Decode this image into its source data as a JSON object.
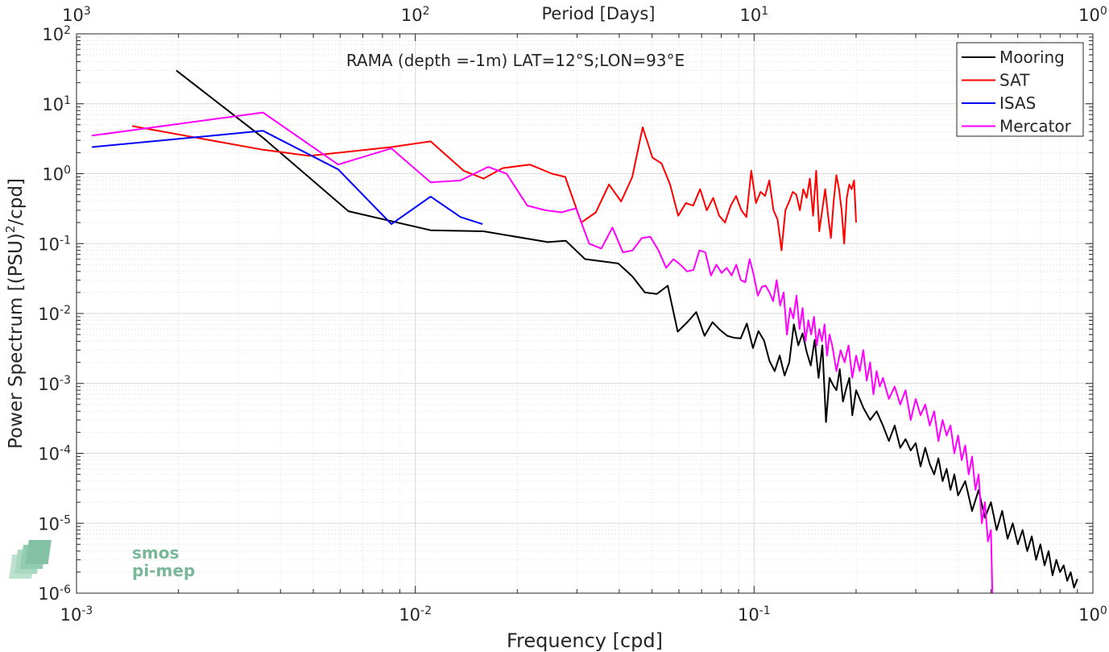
{
  "chart_data": {
    "type": "line",
    "title": "RAMA (depth =-1m) LAT=12°S;LON=93°E",
    "xlabel": "Frequency [cpd]",
    "ylabel": "Power Spectrum [(PSU)",
    "ylabel_sup": "2",
    "ylabel_tail": "/cpd]",
    "top_xlabel": "Period [Days]",
    "xscale": "log",
    "yscale": "log",
    "xlim": [
      0.001,
      1
    ],
    "ylim": [
      1e-06,
      100
    ],
    "grid": true,
    "legend_position": "top-right",
    "x_ticks": [
      {
        "base": "10",
        "exp": "-3"
      },
      {
        "base": "10",
        "exp": "-2"
      },
      {
        "base": "10",
        "exp": "-1"
      },
      {
        "base": "10",
        "exp": "0"
      }
    ],
    "y_ticks": [
      {
        "base": "10",
        "exp": "-6"
      },
      {
        "base": "10",
        "exp": "-5"
      },
      {
        "base": "10",
        "exp": "-4"
      },
      {
        "base": "10",
        "exp": "-3"
      },
      {
        "base": "10",
        "exp": "-2"
      },
      {
        "base": "10",
        "exp": "-1"
      },
      {
        "base": "10",
        "exp": "0"
      },
      {
        "base": "10",
        "exp": "1"
      },
      {
        "base": "10",
        "exp": "2"
      }
    ],
    "top_ticks": [
      {
        "base": "10",
        "exp": "3"
      },
      {
        "base": "10",
        "exp": "2"
      },
      {
        "base": "10",
        "exp": "1"
      },
      {
        "base": "10",
        "exp": "0"
      }
    ],
    "series": [
      {
        "name": "Mooring",
        "color": "#000000",
        "x": [
          0.00197,
          0.00357,
          0.00635,
          0.0111,
          0.0159,
          0.0246,
          0.0278,
          0.0317,
          0.0397,
          0.0437,
          0.0476,
          0.0516,
          0.0556,
          0.0595,
          0.0635,
          0.0675,
          0.0714,
          0.0754,
          0.0794,
          0.0833,
          0.0873,
          0.0913,
          0.0952,
          0.0992,
          0.103,
          0.107,
          0.111,
          0.115,
          0.119,
          0.123,
          0.127,
          0.131,
          0.135,
          0.139,
          0.143,
          0.147,
          0.151,
          0.155,
          0.159,
          0.163,
          0.167,
          0.171,
          0.175,
          0.179,
          0.183,
          0.187,
          0.191,
          0.195,
          0.2,
          0.21,
          0.22,
          0.23,
          0.24,
          0.25,
          0.26,
          0.27,
          0.28,
          0.29,
          0.3,
          0.31,
          0.32,
          0.33,
          0.34,
          0.35,
          0.36,
          0.37,
          0.38,
          0.39,
          0.4,
          0.42,
          0.44,
          0.46,
          0.48,
          0.5,
          0.52,
          0.54,
          0.56,
          0.58,
          0.6,
          0.62,
          0.64,
          0.66,
          0.68,
          0.7,
          0.72,
          0.74,
          0.76,
          0.78,
          0.8,
          0.82,
          0.84,
          0.86,
          0.88,
          0.9
        ],
        "values": [
          30,
          3.2,
          0.29,
          0.155,
          0.15,
          0.105,
          0.11,
          0.06,
          0.052,
          0.034,
          0.02,
          0.019,
          0.025,
          0.0055,
          0.0075,
          0.0105,
          0.0048,
          0.0075,
          0.0058,
          0.0048,
          0.0045,
          0.0044,
          0.0072,
          0.0032,
          0.0056,
          0.0041,
          0.0021,
          0.0015,
          0.0025,
          0.0013,
          0.002,
          0.007,
          0.0035,
          0.0052,
          0.0028,
          0.0018,
          0.0042,
          0.0012,
          0.0035,
          0.00028,
          0.0012,
          0.00095,
          0.0008,
          0.0016,
          0.00055,
          0.00085,
          0.0012,
          0.00035,
          0.0008,
          0.00045,
          0.0003,
          0.0004,
          0.00025,
          0.00015,
          0.00025,
          0.00012,
          0.00016,
          0.00011,
          0.00014,
          6.5e-05,
          0.00012,
          7e-05,
          5e-05,
          8.5e-05,
          4e-05,
          6e-05,
          3e-05,
          5e-05,
          2.5e-05,
          4e-05,
          1.5e-05,
          3e-05,
          1.2e-05,
          2e-05,
          8e-06,
          1.5e-05,
          6e-06,
          1e-05,
          5e-06,
          8e-06,
          4e-06,
          6.5e-06,
          3e-06,
          5e-06,
          2.5e-06,
          4e-06,
          1.8e-06,
          3e-06,
          2e-06,
          2.5e-06,
          1.5e-06,
          2e-06,
          1.2e-06,
          1.6e-06
        ]
      },
      {
        "name": "SAT",
        "color": "#ff0000",
        "x": [
          0.00146,
          0.00355,
          0.00487,
          0.0085,
          0.0111,
          0.0139,
          0.0159,
          0.0181,
          0.0218,
          0.0253,
          0.0277,
          0.0309,
          0.0341,
          0.0373,
          0.0405,
          0.0437,
          0.0469,
          0.0501,
          0.0533,
          0.0565,
          0.0597,
          0.0629,
          0.0661,
          0.0693,
          0.0725,
          0.0757,
          0.0789,
          0.0821,
          0.0853,
          0.0885,
          0.0917,
          0.0949,
          0.0981,
          0.1013,
          0.1045,
          0.1077,
          0.1109,
          0.1141,
          0.1173,
          0.1205,
          0.1237,
          0.1269,
          0.1301,
          0.1333,
          0.1365,
          0.1397,
          0.1429,
          0.1461,
          0.1493,
          0.1525,
          0.1557,
          0.1589,
          0.1621,
          0.1653,
          0.1685,
          0.1717,
          0.1749,
          0.1781,
          0.1813,
          0.1845,
          0.1877,
          0.1909,
          0.1941,
          0.1973,
          0.2
        ],
        "values": [
          4.8,
          2.2,
          1.8,
          2.4,
          2.9,
          1.1,
          0.85,
          1.2,
          1.35,
          1.0,
          0.9,
          0.2,
          0.28,
          0.7,
          0.4,
          0.9,
          4.6,
          1.7,
          1.4,
          0.7,
          0.25,
          0.38,
          0.35,
          0.6,
          0.3,
          0.45,
          0.25,
          0.2,
          0.35,
          0.48,
          0.3,
          0.24,
          1.1,
          0.38,
          0.55,
          0.48,
          0.8,
          0.3,
          0.22,
          0.08,
          0.3,
          0.4,
          0.55,
          0.5,
          0.3,
          0.6,
          0.45,
          0.85,
          0.25,
          1.1,
          0.15,
          0.3,
          0.6,
          0.25,
          0.12,
          0.4,
          0.95,
          0.6,
          0.3,
          0.1,
          0.45,
          0.7,
          0.6,
          0.8,
          0.2
        ]
      },
      {
        "name": "ISAS",
        "color": "#0000ff",
        "x": [
          0.00111,
          0.00355,
          0.00592,
          0.0085,
          0.0111,
          0.0136,
          0.0158
        ],
        "values": [
          2.4,
          4.1,
          1.15,
          0.19,
          0.47,
          0.24,
          0.19
        ]
      },
      {
        "name": "Mercator",
        "color": "#ff00ff",
        "x": [
          0.00111,
          0.00355,
          0.00592,
          0.0085,
          0.0111,
          0.0136,
          0.0164,
          0.0186,
          0.0214,
          0.0242,
          0.027,
          0.0298,
          0.0326,
          0.0354,
          0.0382,
          0.041,
          0.0438,
          0.0466,
          0.0494,
          0.0522,
          0.055,
          0.0578,
          0.0606,
          0.0634,
          0.0662,
          0.069,
          0.0718,
          0.0746,
          0.0774,
          0.0802,
          0.083,
          0.0858,
          0.0886,
          0.0914,
          0.0942,
          0.097,
          0.0998,
          0.1026,
          0.1054,
          0.1082,
          0.111,
          0.1138,
          0.1166,
          0.1194,
          0.1222,
          0.125,
          0.1278,
          0.1306,
          0.1334,
          0.1362,
          0.139,
          0.1418,
          0.1446,
          0.1474,
          0.1502,
          0.153,
          0.1558,
          0.1586,
          0.1614,
          0.1642,
          0.167,
          0.17,
          0.175,
          0.18,
          0.185,
          0.19,
          0.195,
          0.2,
          0.205,
          0.21,
          0.215,
          0.22,
          0.225,
          0.23,
          0.235,
          0.24,
          0.25,
          0.26,
          0.27,
          0.28,
          0.29,
          0.3,
          0.31,
          0.32,
          0.33,
          0.34,
          0.35,
          0.36,
          0.37,
          0.38,
          0.39,
          0.4,
          0.41,
          0.42,
          0.43,
          0.44,
          0.45,
          0.46,
          0.47,
          0.48,
          0.49,
          0.5,
          0.505
        ],
        "values": [
          3.5,
          7.5,
          1.35,
          2.3,
          0.75,
          0.8,
          1.25,
          1.0,
          0.35,
          0.3,
          0.28,
          0.32,
          0.1,
          0.085,
          0.17,
          0.075,
          0.08,
          0.12,
          0.125,
          0.08,
          0.045,
          0.06,
          0.05,
          0.04,
          0.042,
          0.08,
          0.075,
          0.035,
          0.05,
          0.038,
          0.045,
          0.035,
          0.05,
          0.03,
          0.028,
          0.06,
          0.035,
          0.018,
          0.024,
          0.025,
          0.02,
          0.015,
          0.03,
          0.013,
          0.02,
          0.005,
          0.012,
          0.0085,
          0.018,
          0.006,
          0.012,
          0.004,
          0.008,
          0.005,
          0.009,
          0.0035,
          0.006,
          0.004,
          0.007,
          0.0025,
          0.005,
          0.0035,
          0.0015,
          0.003,
          0.002,
          0.0035,
          0.0012,
          0.0025,
          0.0015,
          0.003,
          0.0011,
          0.002,
          0.0007,
          0.0015,
          0.0009,
          0.0012,
          0.0006,
          0.0009,
          0.0005,
          0.0008,
          0.0003,
          0.0006,
          0.00035,
          0.0005,
          0.00025,
          0.0004,
          0.00015,
          0.0003,
          0.00018,
          0.00025,
          0.0001,
          0.00018,
          8e-05,
          0.00013,
          5e-05,
          9e-05,
          3e-05,
          5e-05,
          1e-05,
          2e-05,
          5.5e-06,
          8e-06,
          1e-06
        ]
      }
    ]
  },
  "watermark": {
    "line1": "smos",
    "line2": "pi-mep"
  }
}
